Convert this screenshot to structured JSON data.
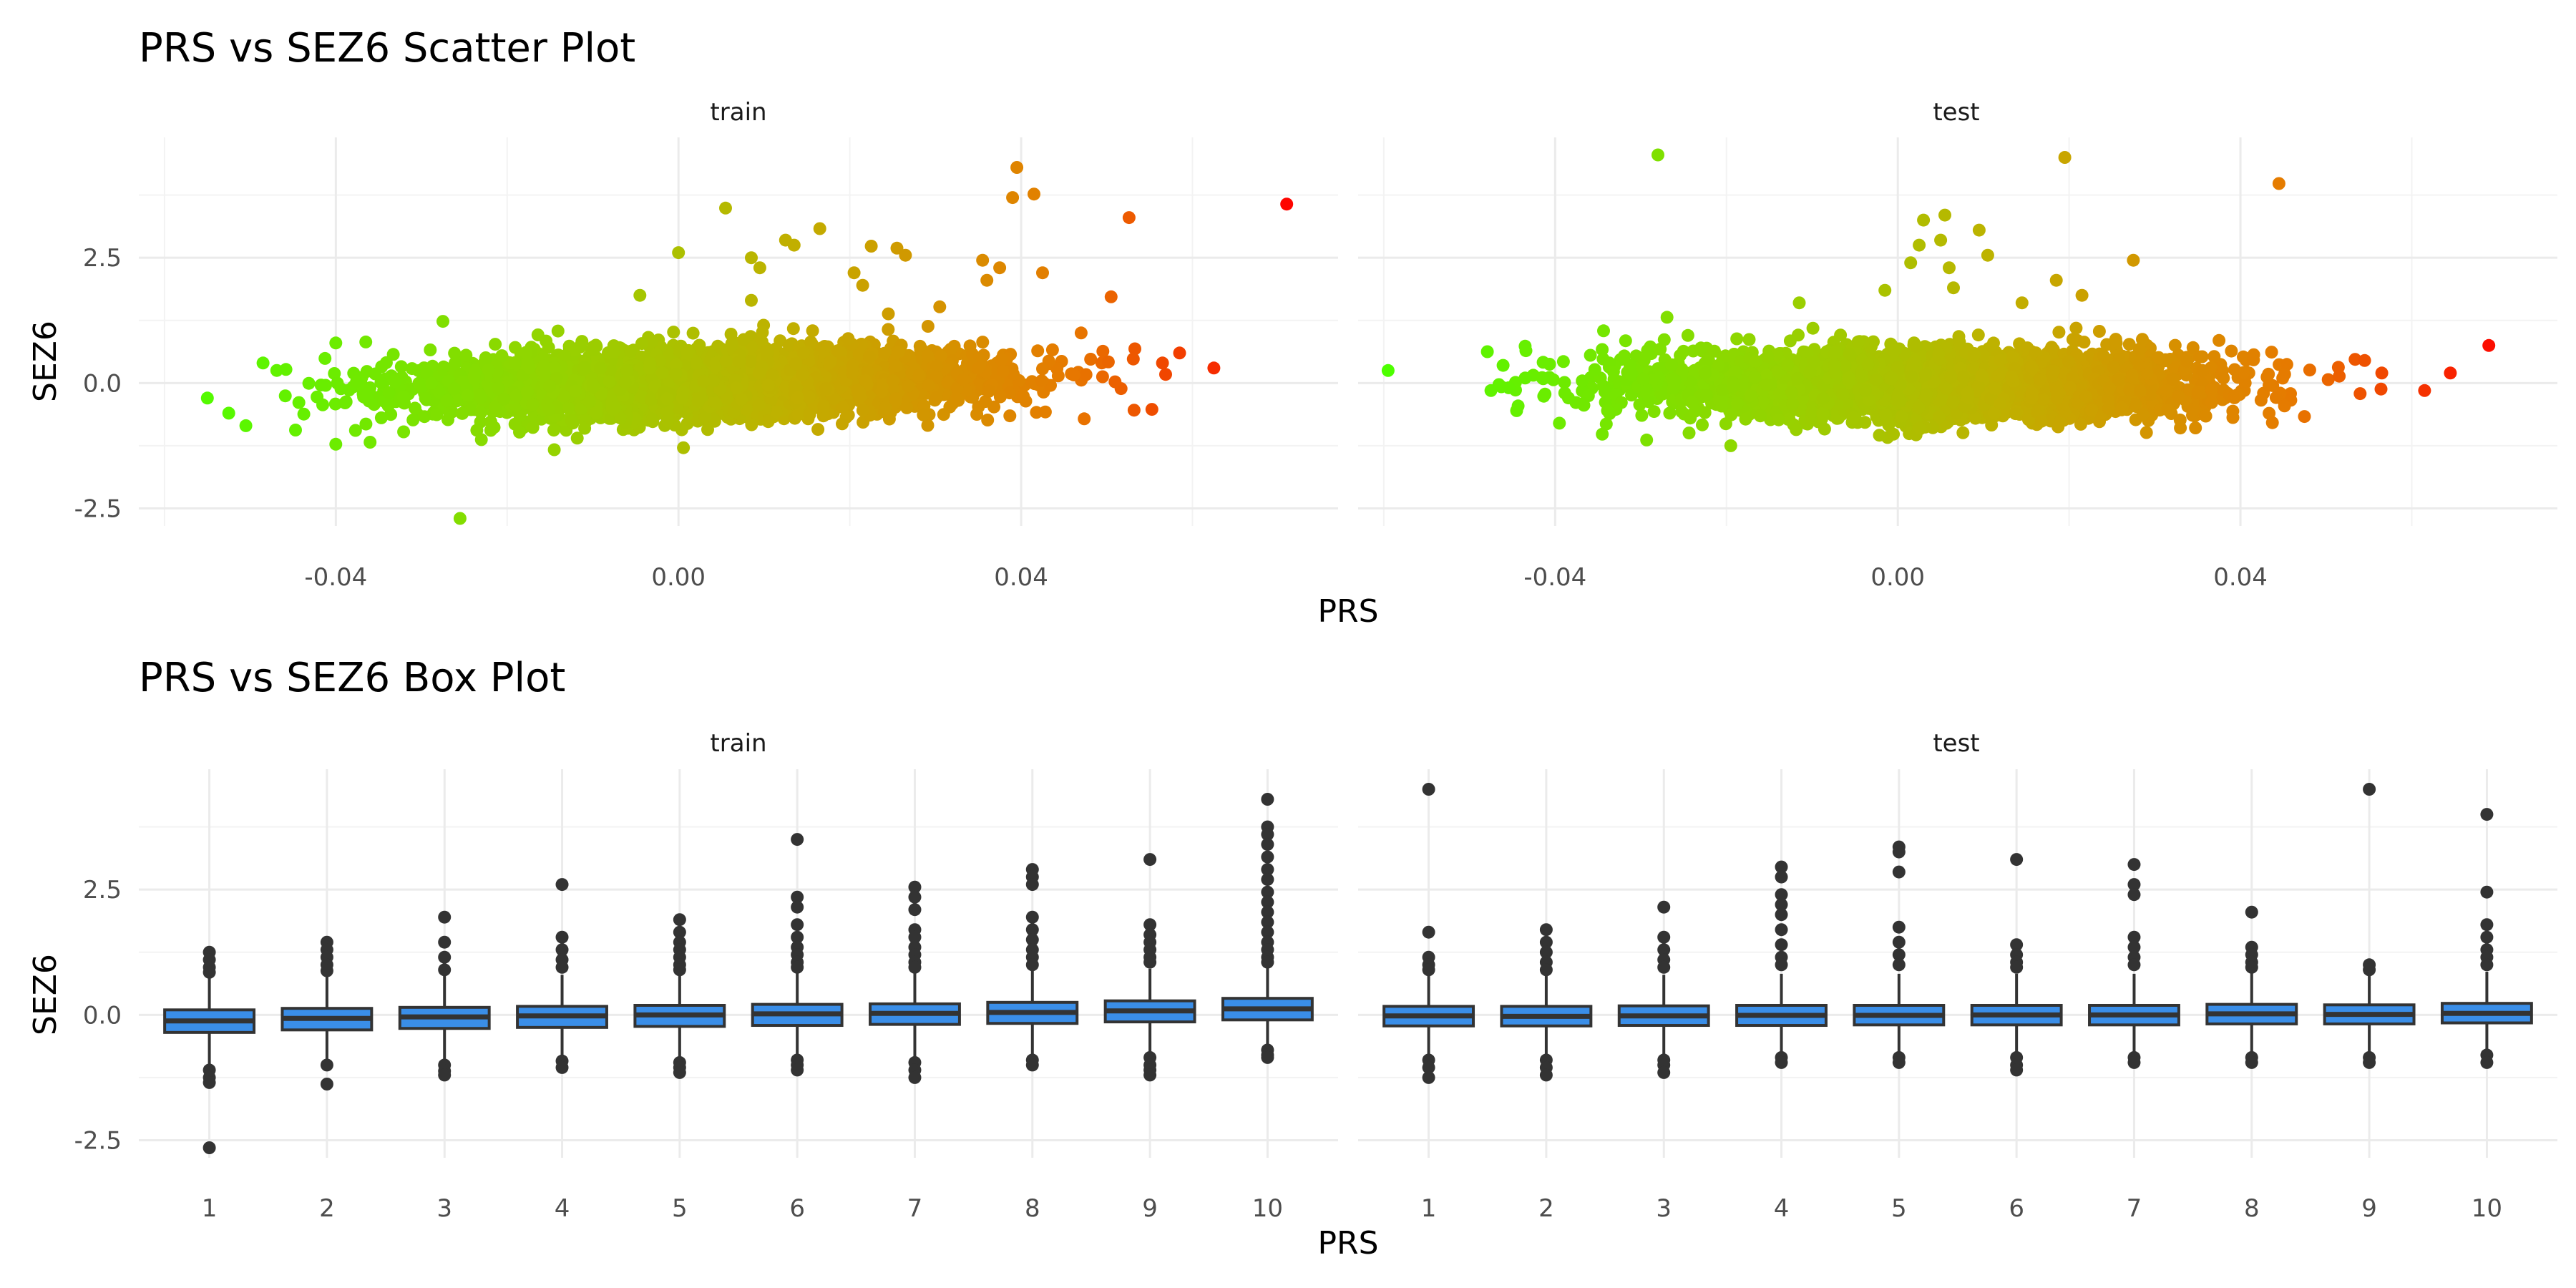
{
  "chart_data": [
    {
      "type": "scatter",
      "title": "PRS vs SEZ6 Scatter Plot",
      "xlabel": "PRS",
      "ylabel": "SEZ6",
      "facets": [
        "train",
        "test"
      ],
      "xlim": [
        -0.063,
        0.077
      ],
      "ylim": [
        -2.85,
        4.9
      ],
      "x_ticks": [
        -0.04,
        0.0,
        0.04
      ],
      "x_tick_labels": [
        "-0.04",
        "0.00",
        "0.04"
      ],
      "y_ticks": [
        -2.5,
        0.0,
        2.5
      ],
      "y_tick_labels": [
        "-2.5",
        "0.0",
        "2.5"
      ],
      "grid": true,
      "color_scale": {
        "low": "#4cff00",
        "mid": "#c0b000",
        "high": "#ff0000",
        "mapped_to": "PRS"
      },
      "bulk_description": "dense cloud of several thousand points centred near SEZ6 = 0, SD about 0.35, PRS about -0.05 to 0.06",
      "series": [
        {
          "name": "train",
          "outliers": [
            [
              0.071,
              3.57
            ],
            [
              0.0395,
              4.3
            ],
            [
              0.0415,
              3.77
            ],
            [
              0.039,
              3.7
            ],
            [
              0.0526,
              3.3
            ],
            [
              0.0055,
              3.49
            ],
            [
              0.0165,
              3.08
            ],
            [
              0.0125,
              2.85
            ],
            [
              0.0135,
              2.75
            ],
            [
              0.0225,
              2.73
            ],
            [
              0.0255,
              2.69
            ],
            [
              0.0265,
              2.55
            ],
            [
              0.0355,
              2.45
            ],
            [
              0.0425,
              2.2
            ],
            [
              0.0375,
              2.3
            ],
            [
              0.036,
              2.05
            ],
            [
              0.0,
              2.6
            ],
            [
              0.0085,
              2.5
            ],
            [
              0.0095,
              2.3
            ],
            [
              0.0205,
              2.2
            ],
            [
              0.0585,
              0.6
            ],
            [
              0.0625,
              0.3
            ],
            [
              0.0565,
              0.4
            ],
            [
              0.0505,
              1.72
            ],
            [
              0.047,
              1.0
            ],
            [
              -0.055,
              -0.3
            ],
            [
              -0.0525,
              -0.6
            ],
            [
              -0.0505,
              -0.85
            ],
            [
              -0.0485,
              0.4
            ],
            [
              -0.04,
              -1.22
            ],
            [
              -0.036,
              -1.18
            ],
            [
              -0.04,
              0.8
            ],
            [
              -0.0365,
              0.82
            ],
            [
              -0.0255,
              -2.7
            ],
            [
              -0.0145,
              -1.33
            ],
            [
              -0.0275,
              1.23
            ],
            [
              -0.0045,
              1.75
            ],
            [
              0.0305,
              1.52
            ],
            [
              0.0245,
              1.38
            ],
            [
              0.0215,
              1.95
            ],
            [
              0.0085,
              1.65
            ]
          ]
        },
        {
          "name": "test",
          "outliers": [
            [
              -0.028,
              4.55
            ],
            [
              0.0195,
              4.5
            ],
            [
              0.0445,
              3.98
            ],
            [
              0.0055,
              3.35
            ],
            [
              0.003,
              3.25
            ],
            [
              0.0025,
              2.75
            ],
            [
              0.0095,
              3.05
            ],
            [
              0.005,
              2.85
            ],
            [
              0.0105,
              2.55
            ],
            [
              0.0275,
              2.45
            ],
            [
              0.006,
              2.3
            ],
            [
              0.0015,
              2.4
            ],
            [
              0.0185,
              2.05
            ],
            [
              0.0215,
              1.75
            ],
            [
              0.0145,
              1.6
            ],
            [
              0.0065,
              1.9
            ],
            [
              -0.0595,
              0.25
            ],
            [
              -0.0475,
              -0.15
            ],
            [
              -0.0445,
              -0.55
            ],
            [
              -0.0395,
              -0.8
            ],
            [
              -0.0345,
              -1.02
            ],
            [
              -0.0435,
              0.1
            ],
            [
              0.069,
              0.75
            ],
            [
              0.0645,
              0.2
            ],
            [
              0.0615,
              -0.15
            ],
            [
              0.0565,
              0.2
            ],
            [
              0.0545,
              0.45
            ],
            [
              0.0255,
              0.8
            ],
            [
              -0.0195,
              -1.25
            ],
            [
              -0.0115,
              1.6
            ],
            [
              -0.0015,
              1.85
            ],
            [
              0.0375,
              0.85
            ],
            [
              -0.0245,
              0.95
            ]
          ]
        }
      ]
    },
    {
      "type": "box",
      "title": "PRS vs SEZ6 Box Plot",
      "xlabel": "PRS",
      "ylabel": "SEZ6",
      "facets": [
        "train",
        "test"
      ],
      "categories": [
        "1",
        "2",
        "3",
        "4",
        "5",
        "6",
        "7",
        "8",
        "9",
        "10"
      ],
      "ylim": [
        -2.85,
        4.9
      ],
      "y_ticks": [
        -2.5,
        0.0,
        2.5
      ],
      "y_tick_labels": [
        "-2.5",
        "0.0",
        "2.5"
      ],
      "grid": true,
      "fill_color": "#3a8ee8",
      "series": [
        {
          "name": "train",
          "boxes": [
            {
              "q1": -0.35,
              "median": -0.12,
              "q3": 0.1,
              "lower": -1.0,
              "upper": 0.78,
              "outliers": [
                1.25,
                1.1,
                0.95,
                0.85,
                -1.1,
                -1.25,
                -1.35,
                -2.65
              ]
            },
            {
              "q1": -0.3,
              "median": -0.07,
              "q3": 0.13,
              "lower": -0.92,
              "upper": 0.78,
              "outliers": [
                1.45,
                1.3,
                1.15,
                1.0,
                0.88,
                -1.0,
                -1.38
              ]
            },
            {
              "q1": -0.27,
              "median": -0.04,
              "q3": 0.15,
              "lower": -0.92,
              "upper": 0.78,
              "outliers": [
                1.95,
                1.45,
                1.15,
                0.9,
                -1.0,
                -1.12,
                -1.2
              ]
            },
            {
              "q1": -0.25,
              "median": -0.02,
              "q3": 0.17,
              "lower": -0.88,
              "upper": 0.8,
              "outliers": [
                2.6,
                1.55,
                1.3,
                1.1,
                0.95,
                -0.92,
                -1.05
              ]
            },
            {
              "q1": -0.23,
              "median": 0.0,
              "q3": 0.19,
              "lower": -0.88,
              "upper": 0.82,
              "outliers": [
                1.9,
                1.65,
                1.45,
                1.3,
                1.15,
                1.0,
                0.9,
                -0.95,
                -1.05,
                -1.15
              ]
            },
            {
              "q1": -0.21,
              "median": 0.02,
              "q3": 0.21,
              "lower": -0.86,
              "upper": 0.84,
              "outliers": [
                3.5,
                2.35,
                2.15,
                1.8,
                1.55,
                1.35,
                1.2,
                1.05,
                0.95,
                -0.9,
                -1.0,
                -1.1
              ]
            },
            {
              "q1": -0.19,
              "median": 0.03,
              "q3": 0.22,
              "lower": -0.84,
              "upper": 0.86,
              "outliers": [
                2.55,
                2.35,
                2.1,
                1.7,
                1.55,
                1.35,
                1.2,
                1.05,
                0.95,
                -0.95,
                -1.1,
                -1.25
              ]
            },
            {
              "q1": -0.17,
              "median": 0.05,
              "q3": 0.25,
              "lower": -0.82,
              "upper": 0.9,
              "outliers": [
                2.9,
                2.75,
                2.6,
                1.95,
                1.7,
                1.5,
                1.3,
                1.15,
                1.0,
                -0.9,
                -1.0
              ]
            },
            {
              "q1": -0.14,
              "median": 0.08,
              "q3": 0.28,
              "lower": -0.78,
              "upper": 0.92,
              "outliers": [
                3.1,
                1.8,
                1.6,
                1.45,
                1.3,
                1.15,
                1.05,
                -0.85,
                -1.0,
                -1.1,
                -1.2
              ]
            },
            {
              "q1": -0.1,
              "median": 0.12,
              "q3": 0.33,
              "lower": -0.72,
              "upper": 0.98,
              "outliers": [
                4.3,
                3.75,
                3.6,
                3.4,
                3.15,
                2.9,
                2.7,
                2.45,
                2.25,
                2.05,
                1.85,
                1.65,
                1.45,
                1.3,
                1.15,
                1.05,
                -0.7,
                -0.8,
                -0.85
              ]
            }
          ]
        },
        {
          "name": "test",
          "boxes": [
            {
              "q1": -0.22,
              "median": -0.02,
              "q3": 0.17,
              "lower": -0.82,
              "upper": 0.8,
              "outliers": [
                4.5,
                1.65,
                1.15,
                1.0,
                0.9,
                -0.9,
                -1.05,
                -1.25
              ]
            },
            {
              "q1": -0.22,
              "median": -0.03,
              "q3": 0.17,
              "lower": -0.82,
              "upper": 0.8,
              "outliers": [
                1.7,
                1.45,
                1.25,
                1.05,
                0.9,
                -0.9,
                -1.05,
                -1.2
              ]
            },
            {
              "q1": -0.21,
              "median": -0.02,
              "q3": 0.18,
              "lower": -0.82,
              "upper": 0.8,
              "outliers": [
                2.15,
                1.55,
                1.3,
                1.1,
                0.95,
                -0.9,
                -1.0,
                -1.15
              ]
            },
            {
              "q1": -0.21,
              "median": -0.01,
              "q3": 0.19,
              "lower": -0.8,
              "upper": 0.82,
              "outliers": [
                2.95,
                2.75,
                2.4,
                2.2,
                2.0,
                1.7,
                1.4,
                1.15,
                1.0,
                -0.85,
                -0.95
              ]
            },
            {
              "q1": -0.2,
              "median": -0.01,
              "q3": 0.19,
              "lower": -0.8,
              "upper": 0.82,
              "outliers": [
                3.35,
                3.25,
                2.85,
                1.75,
                1.45,
                1.2,
                1.0,
                -0.85,
                -0.95
              ]
            },
            {
              "q1": -0.2,
              "median": 0.0,
              "q3": 0.19,
              "lower": -0.8,
              "upper": 0.82,
              "outliers": [
                3.1,
                1.4,
                1.2,
                1.05,
                0.95,
                -0.85,
                -1.0,
                -1.1
              ]
            },
            {
              "q1": -0.2,
              "median": 0.0,
              "q3": 0.19,
              "lower": -0.8,
              "upper": 0.82,
              "outliers": [
                3.0,
                2.6,
                2.4,
                1.55,
                1.35,
                1.15,
                1.0,
                -0.85,
                -0.95
              ]
            },
            {
              "q1": -0.18,
              "median": 0.02,
              "q3": 0.21,
              "lower": -0.78,
              "upper": 0.84,
              "outliers": [
                2.05,
                1.35,
                1.2,
                1.05,
                0.95,
                -0.85,
                -0.95
              ]
            },
            {
              "q1": -0.18,
              "median": 0.01,
              "q3": 0.2,
              "lower": -0.78,
              "upper": 0.82,
              "outliers": [
                4.5,
                1.0,
                0.9,
                -0.85,
                -0.95
              ]
            },
            {
              "q1": -0.16,
              "median": 0.03,
              "q3": 0.23,
              "lower": -0.76,
              "upper": 0.86,
              "outliers": [
                4.0,
                2.45,
                1.8,
                1.55,
                1.3,
                1.15,
                1.0,
                -0.8,
                -0.95
              ]
            }
          ]
        }
      ]
    }
  ]
}
